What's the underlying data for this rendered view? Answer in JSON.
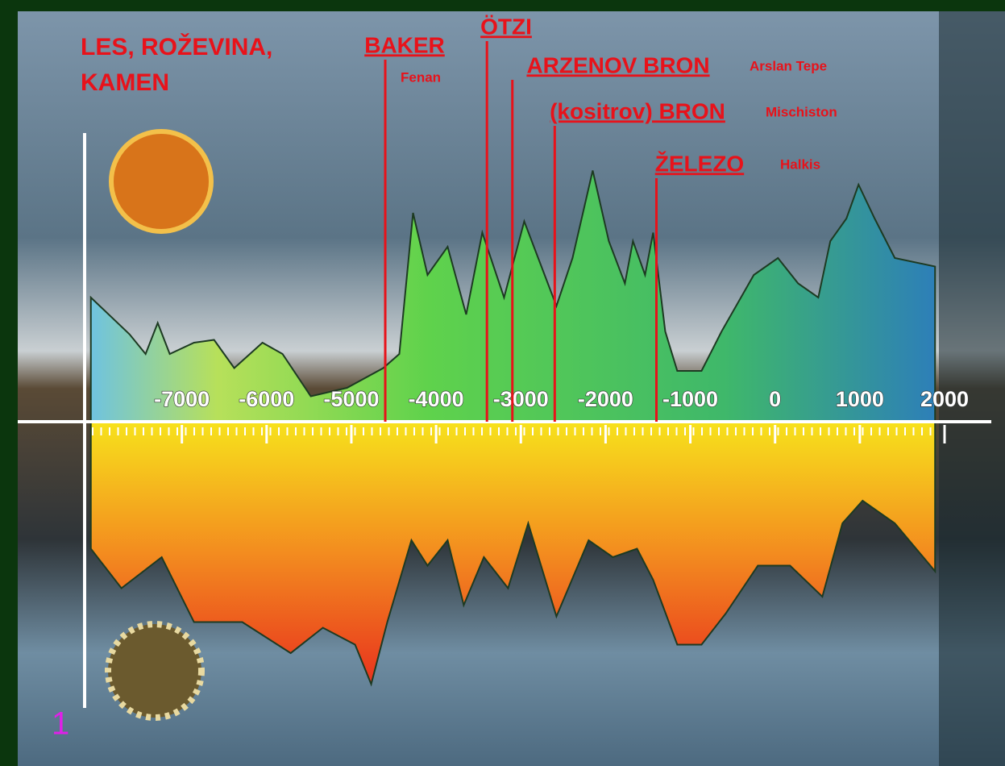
{
  "chart_data": {
    "type": "area",
    "title_lines": [
      "LES, ROŽEVINA,",
      "KAMEN"
    ],
    "panel_label": "1",
    "xlim": [
      -8100,
      2000
    ],
    "xticks": [
      -7000,
      -6000,
      -5000,
      -4000,
      -3000,
      -2000,
      -1000,
      0,
      1000,
      2000
    ],
    "ylim": [
      -100,
      100
    ],
    "series": [
      {
        "color": "#5ccf48",
        "x": [
          -8074,
          -7618,
          -7428,
          -7285,
          -7143,
          -6857,
          -6620,
          -6382,
          -6049,
          -5812,
          -5479,
          -5051,
          -4624,
          -4434,
          -4272,
          -4101,
          -3864,
          -3645,
          -3455,
          -3198,
          -2960,
          -2580,
          -2390,
          -2152,
          -1962,
          -1772,
          -1677,
          -1534,
          -1439,
          -1296,
          -1154,
          -868,
          -631,
          -251,
          34,
          272,
          510,
          652,
          842,
          985,
          1175,
          1413,
          1888
        ],
        "values": [
          44,
          31,
          24,
          35,
          24,
          28,
          29,
          19,
          28,
          24,
          9,
          12,
          19,
          24,
          74,
          52,
          62,
          38,
          67,
          44,
          71,
          41,
          58,
          89,
          64,
          49,
          64,
          52,
          67,
          32,
          18,
          18,
          32,
          52,
          58,
          49,
          44,
          64,
          72,
          84,
          72,
          58,
          55
        ]
      },
      {
        "color": "#f08a1e",
        "x": [
          -8074,
          -7713,
          -7238,
          -6857,
          -6287,
          -5716,
          -5336,
          -4956,
          -4766,
          -4576,
          -4291,
          -4101,
          -3864,
          -3674,
          -3436,
          -3151,
          -2913,
          -2580,
          -2200,
          -1915,
          -1629,
          -1439,
          -1154,
          -868,
          -583,
          -203,
          177,
          558,
          795,
          1033,
          1413,
          1888
        ],
        "values": [
          -45,
          -59,
          -48,
          -71,
          -71,
          -82,
          -73,
          -79,
          -93,
          -71,
          -42,
          -51,
          -42,
          -65,
          -48,
          -59,
          -36,
          -69,
          -42,
          -48,
          -45,
          -56,
          -79,
          -79,
          -68,
          -51,
          -51,
          -62,
          -36,
          -28,
          -36,
          -53
        ]
      }
    ],
    "annotations": [
      {
        "label": "BAKER",
        "sublabel": "Fenan",
        "x": -4600,
        "color": "#e8121a"
      },
      {
        "label": "ÖTZI",
        "x": -3400,
        "color": "#e8121a"
      },
      {
        "label": "ARZENOV BRON",
        "sublabel": "Arslan Tepe",
        "x": -3100,
        "color": "#e8121a"
      },
      {
        "label": "(kositrov) BRON",
        "sublabel": "Mischiston",
        "x": -2600,
        "color": "#e8121a"
      },
      {
        "label": "ŽELEZO",
        "sublabel": "Halkis",
        "x": -1400,
        "color": "#e8121a"
      }
    ]
  }
}
